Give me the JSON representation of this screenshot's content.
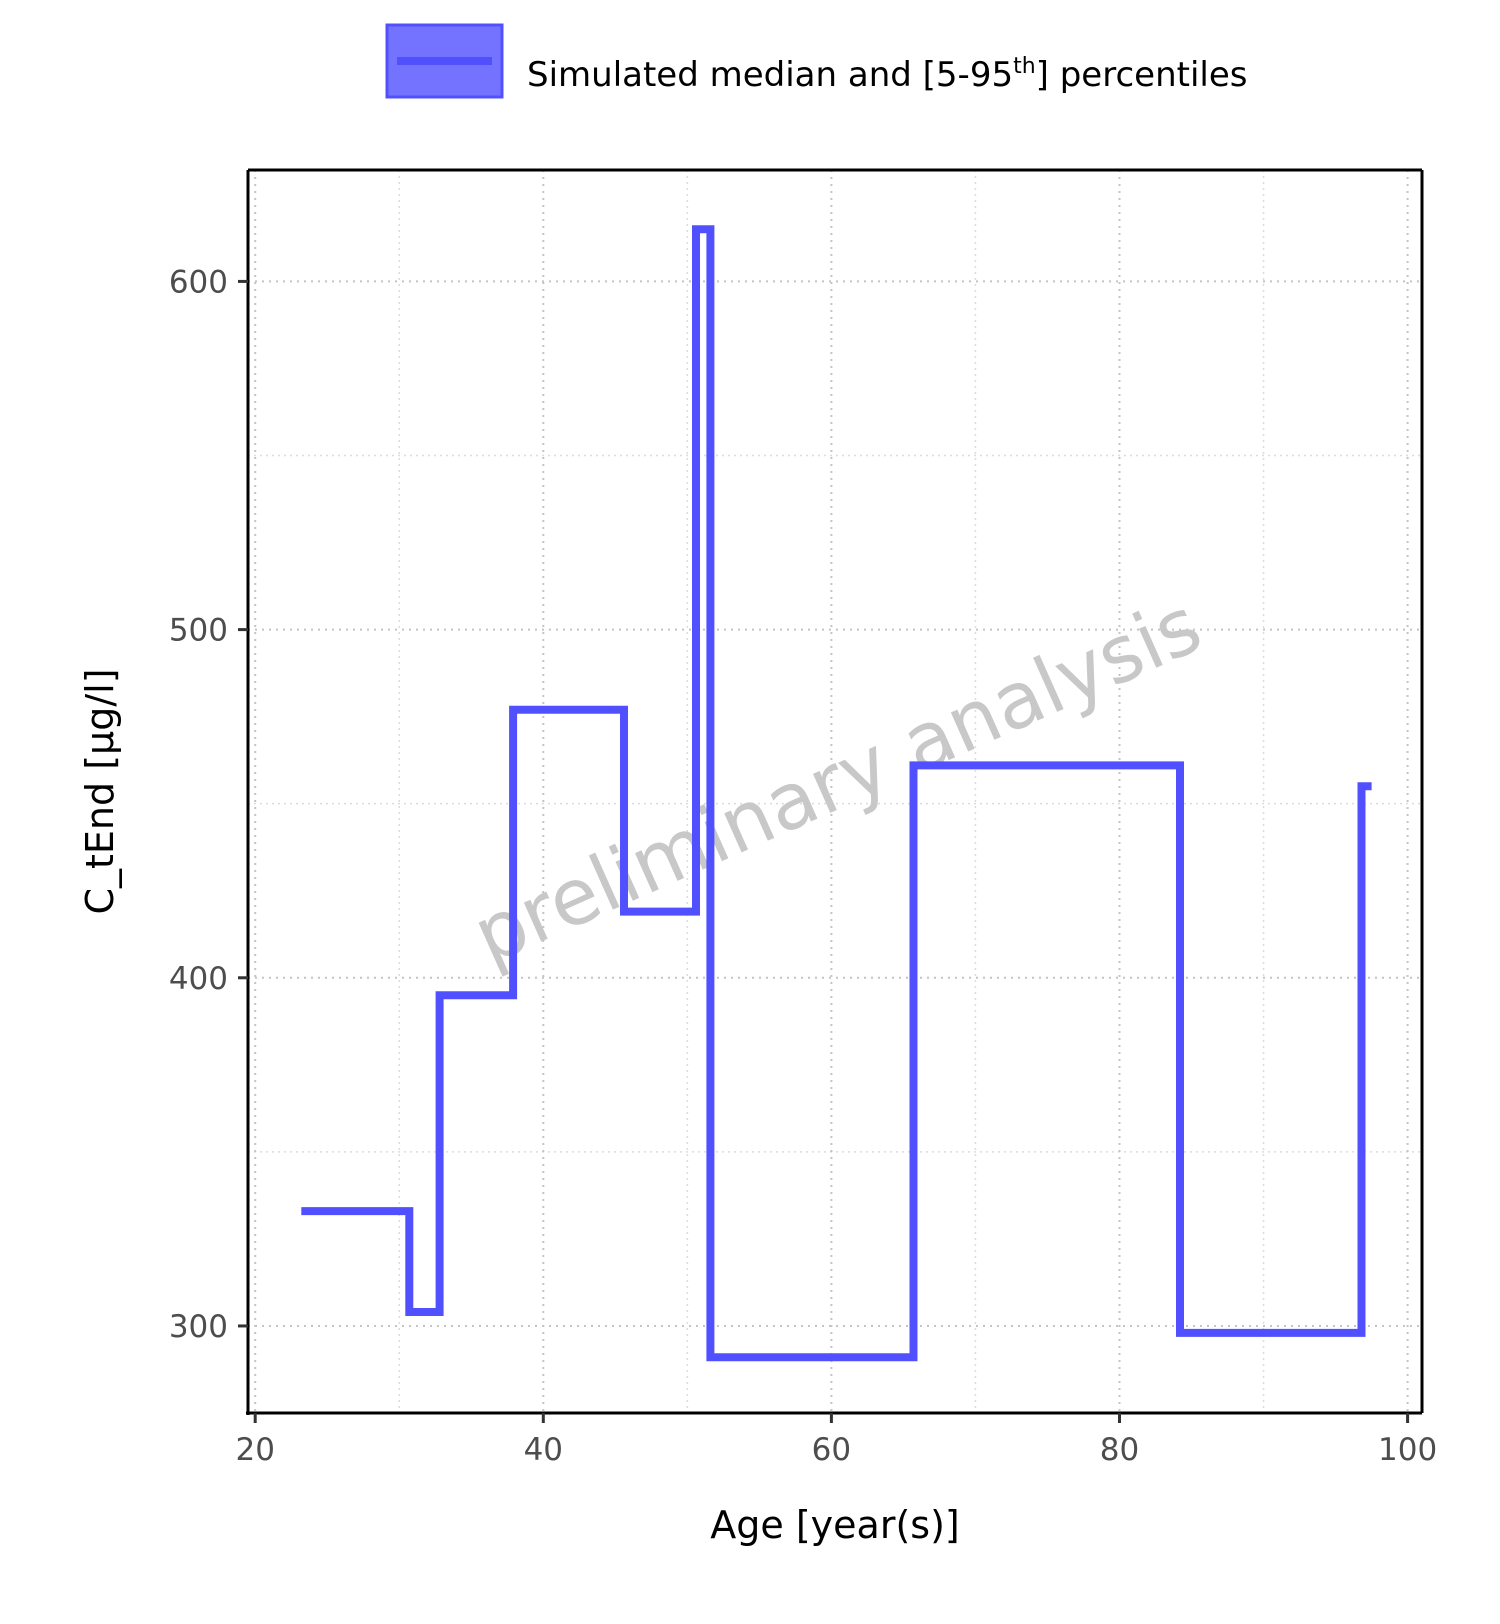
{
  "chart_data": {
    "type": "line",
    "step": true,
    "xlabel": "Age [year(s)]",
    "ylabel": "C_tEnd [µg/l]",
    "xlim": [
      19.5,
      101
    ],
    "ylim": [
      275,
      632
    ],
    "x_ticks": [
      20,
      40,
      60,
      80,
      100
    ],
    "y_ticks": [
      300,
      400,
      500,
      600
    ],
    "grid": true,
    "legend": {
      "placement": "top",
      "label_before": "Simulated median and [5-95",
      "label_sup": "th",
      "label_after": "] percentiles"
    },
    "watermark": "preliminary analysis",
    "series": [
      {
        "name": "Simulated median and [5-95th] percentiles",
        "color": "#5050ff",
        "points": [
          [
            23.2,
            333
          ],
          [
            30.7,
            333
          ],
          [
            30.7,
            304
          ],
          [
            32.8,
            304
          ],
          [
            32.8,
            395
          ],
          [
            37.9,
            395
          ],
          [
            37.9,
            477
          ],
          [
            45.6,
            477
          ],
          [
            45.6,
            419
          ],
          [
            50.6,
            419
          ],
          [
            50.6,
            615
          ],
          [
            51.6,
            615
          ],
          [
            51.6,
            291
          ],
          [
            65.7,
            291
          ],
          [
            65.7,
            461
          ],
          [
            84.2,
            461
          ],
          [
            84.2,
            298
          ],
          [
            96.8,
            298
          ],
          [
            96.8,
            455
          ],
          [
            97.5,
            455
          ]
        ]
      }
    ]
  }
}
